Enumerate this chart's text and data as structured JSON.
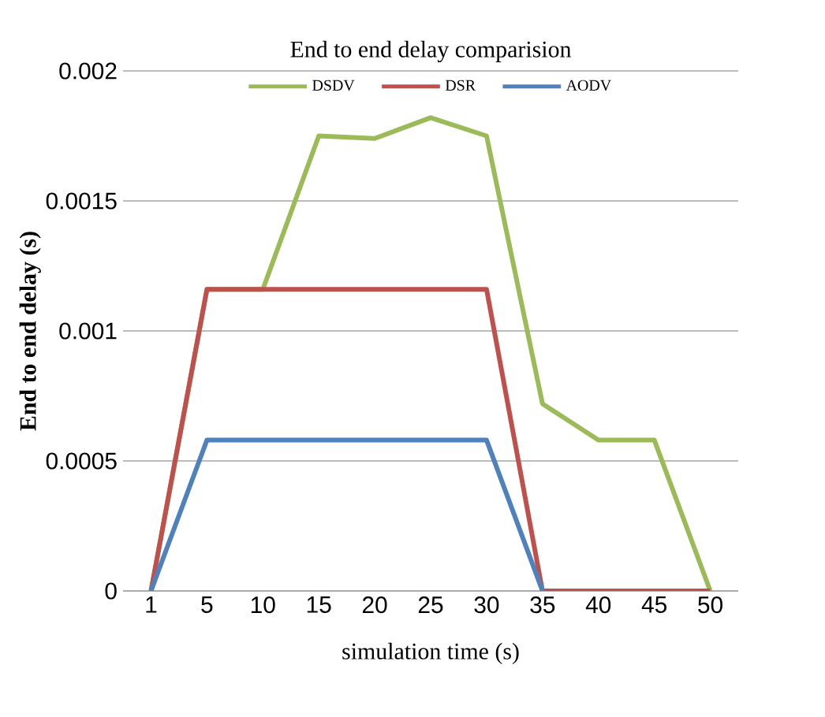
{
  "chart_data": {
    "type": "line",
    "title": "End to end delay comparision",
    "xlabel": "simulation time (s)",
    "ylabel": "End to end delay (s)",
    "categories": [
      "1",
      "5",
      "10",
      "15",
      "20",
      "25",
      "30",
      "35",
      "40",
      "45",
      "50"
    ],
    "series": [
      {
        "name": "DSDV",
        "color": "#9bbb59",
        "values": [
          0,
          0.00116,
          0.00116,
          0.00175,
          0.00174,
          0.00182,
          0.00175,
          0.00072,
          0.00058,
          0.00058,
          0
        ]
      },
      {
        "name": "DSR",
        "color": "#c0504d",
        "values": [
          0,
          0.00116,
          0.00116,
          0.00116,
          0.00116,
          0.00116,
          0.00116,
          0,
          0,
          0,
          0
        ]
      },
      {
        "name": "AODV",
        "color": "#4f81bd",
        "values": [
          0,
          0.00058,
          0.00058,
          0.00058,
          0.00058,
          0.00058,
          0.00058,
          0,
          null,
          null,
          null
        ]
      }
    ],
    "ylim": [
      0,
      0.002
    ],
    "yticks": [
      0,
      0.0005,
      0.001,
      0.0015,
      0.002
    ],
    "grid": "y",
    "legend": "top",
    "marker": "none",
    "line_style": "solid"
  }
}
